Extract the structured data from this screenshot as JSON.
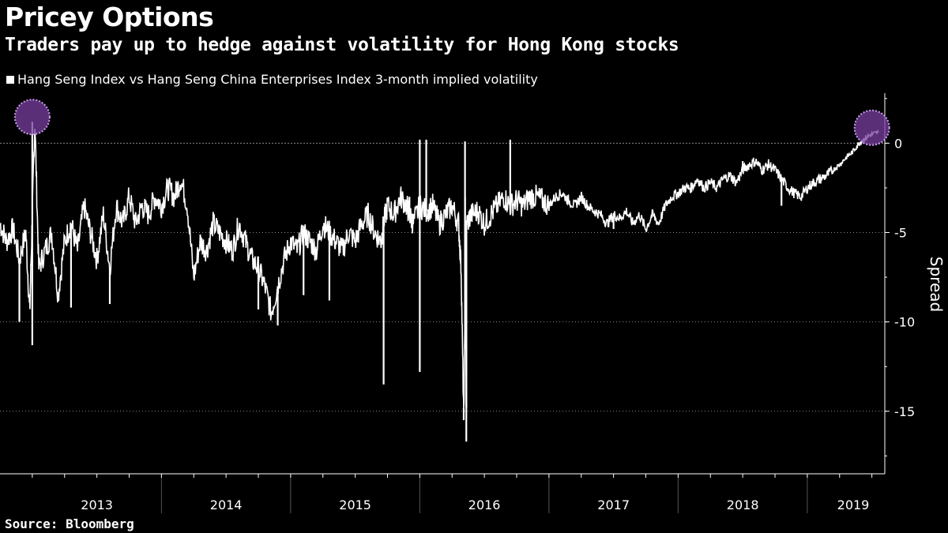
{
  "title": "Pricey Options",
  "subtitle": "Traders pay up to hedge against volatility for Hong Kong stocks",
  "source": "Source: Bloomberg",
  "colors": {
    "background": "#000000",
    "line": "#ffffff",
    "highlight": "#7a3fa0",
    "highlight_border": "#c9a0f0"
  },
  "chart_data": {
    "type": "line",
    "title": "Pricey Options",
    "ylabel": "Spread",
    "xlabel": "",
    "ylim": [
      -18.5,
      2.8
    ],
    "yticks": [
      0,
      -5,
      -10,
      -15
    ],
    "y_tick_labels": [
      "0",
      "-5",
      "-10",
      "-15"
    ],
    "xlim": [
      2012.75,
      2019.6
    ],
    "x_tick_labels": [
      "2013",
      "2014",
      "2015",
      "2016",
      "2017",
      "2018",
      "2019"
    ],
    "reference_line": 0,
    "legend_position": "top-left",
    "series": [
      {
        "name": "Hang Seng Index vs Hang Seng China Enterprises Index 3-month implied volatility",
        "x": [
          2012.75,
          2012.8,
          2012.85,
          2012.9,
          2012.95,
          2012.98,
          2013.0,
          2013.02,
          2013.05,
          2013.1,
          2013.15,
          2013.2,
          2013.25,
          2013.3,
          2013.35,
          2013.4,
          2013.45,
          2013.5,
          2013.55,
          2013.6,
          2013.65,
          2013.7,
          2013.75,
          2013.8,
          2013.85,
          2013.9,
          2013.95,
          2014.0,
          2014.05,
          2014.1,
          2014.15,
          2014.2,
          2014.25,
          2014.3,
          2014.35,
          2014.4,
          2014.45,
          2014.5,
          2014.55,
          2014.6,
          2014.65,
          2014.7,
          2014.75,
          2014.8,
          2014.85,
          2014.9,
          2014.95,
          2015.0,
          2015.05,
          2015.1,
          2015.15,
          2015.2,
          2015.25,
          2015.3,
          2015.35,
          2015.4,
          2015.45,
          2015.5,
          2015.55,
          2015.6,
          2015.65,
          2015.7,
          2015.72,
          2015.75,
          2015.8,
          2015.85,
          2015.9,
          2015.92,
          2015.95,
          2016.0,
          2016.05,
          2016.1,
          2016.15,
          2016.2,
          2016.25,
          2016.3,
          2016.32,
          2016.34,
          2016.36,
          2016.4,
          2016.45,
          2016.5,
          2016.55,
          2016.6,
          2016.65,
          2016.7,
          2016.75,
          2016.8,
          2016.85,
          2016.9,
          2016.95,
          2017.0,
          2017.05,
          2017.1,
          2017.15,
          2017.2,
          2017.25,
          2017.3,
          2017.35,
          2017.4,
          2017.45,
          2017.5,
          2017.55,
          2017.6,
          2017.65,
          2017.7,
          2017.75,
          2017.8,
          2017.85,
          2017.9,
          2017.95,
          2018.0,
          2018.05,
          2018.1,
          2018.15,
          2018.2,
          2018.25,
          2018.3,
          2018.35,
          2018.4,
          2018.45,
          2018.5,
          2018.55,
          2018.6,
          2018.65,
          2018.7,
          2018.75,
          2018.8,
          2018.85,
          2018.9,
          2018.95,
          2019.0,
          2019.05,
          2019.1,
          2019.15,
          2019.2,
          2019.25,
          2019.3,
          2019.35,
          2019.4,
          2019.45,
          2019.5,
          2019.55
        ],
        "values": [
          -4.5,
          -5.5,
          -4.8,
          -6.5,
          -5.0,
          -9.5,
          -4.0,
          1.2,
          -7.0,
          -6.0,
          -5.0,
          -8.5,
          -5.5,
          -4.5,
          -6.0,
          -3.5,
          -5.0,
          -6.5,
          -4.0,
          -7.0,
          -3.5,
          -4.5,
          -3.0,
          -4.5,
          -3.5,
          -4.0,
          -3.0,
          -3.5,
          -2.5,
          -3.0,
          -2.0,
          -3.5,
          -7.5,
          -5.5,
          -6.0,
          -4.5,
          -5.0,
          -5.5,
          -6.0,
          -4.5,
          -5.5,
          -6.5,
          -7.0,
          -8.0,
          -9.5,
          -8.0,
          -6.5,
          -5.5,
          -6.0,
          -5.0,
          -5.5,
          -6.0,
          -4.5,
          -5.0,
          -5.5,
          -6.0,
          -5.0,
          -5.5,
          -4.5,
          -4.0,
          -5.0,
          -5.5,
          -4.5,
          -3.5,
          -4.0,
          -3.0,
          -3.5,
          -4.0,
          -4.5,
          -3.5,
          -3.8,
          -3.5,
          -4.5,
          -4.0,
          -3.5,
          -4.5,
          -7.0,
          -15.5,
          -4.5,
          -4.0,
          -3.8,
          -4.5,
          -4.0,
          -3.5,
          -3.0,
          -3.5,
          -3.2,
          -3.5,
          -3.0,
          -3.0,
          -3.2,
          -3.5,
          -3.0,
          -2.8,
          -3.2,
          -3.5,
          -3.0,
          -3.5,
          -3.8,
          -4.0,
          -4.5,
          -4.0,
          -4.2,
          -3.8,
          -4.5,
          -4.0,
          -4.8,
          -4.0,
          -4.5,
          -3.5,
          -3.0,
          -2.8,
          -2.5,
          -2.5,
          -2.0,
          -2.5,
          -2.2,
          -2.5,
          -2.0,
          -1.8,
          -2.2,
          -1.5,
          -1.2,
          -1.0,
          -1.5,
          -1.2,
          -1.5,
          -2.0,
          -2.5,
          -2.8,
          -3.0,
          -2.5,
          -2.2,
          -2.0,
          -1.8,
          -1.5,
          -1.2,
          -0.8,
          -0.5,
          0.0,
          0.3,
          0.5,
          0.6
        ]
      }
    ],
    "spikes": [
      {
        "x": 2013.0,
        "y": 1.2
      },
      {
        "x": 2013.0,
        "y": -11.3
      },
      {
        "x": 2012.9,
        "y": -10.0
      },
      {
        "x": 2013.3,
        "y": -9.2
      },
      {
        "x": 2013.6,
        "y": -9.0
      },
      {
        "x": 2014.75,
        "y": -9.3
      },
      {
        "x": 2014.9,
        "y": -10.2
      },
      {
        "x": 2015.1,
        "y": -8.5
      },
      {
        "x": 2015.3,
        "y": -8.8
      },
      {
        "x": 2015.72,
        "y": -13.5
      },
      {
        "x": 2015.92,
        "y": -3.0
      },
      {
        "x": 2016.0,
        "y": -12.8
      },
      {
        "x": 2016.0,
        "y": 0.2
      },
      {
        "x": 2016.05,
        "y": 0.2
      },
      {
        "x": 2016.34,
        "y": -14.8
      },
      {
        "x": 2016.36,
        "y": -16.7
      },
      {
        "x": 2016.35,
        "y": -3.0
      },
      {
        "x": 2016.35,
        "y": -9.0
      },
      {
        "x": 2016.36,
        "y": -13.0
      },
      {
        "x": 2016.35,
        "y": -11.5
      },
      {
        "x": 2016.35,
        "y": 0.1
      },
      {
        "x": 2016.36,
        "y": -14.8
      },
      {
        "x": 2016.7,
        "y": 0.2
      },
      {
        "x": 2017.5,
        "y": -4.8
      },
      {
        "x": 2018.5,
        "y": -1.0
      },
      {
        "x": 2018.8,
        "y": -3.5
      }
    ],
    "highlights": [
      {
        "x": 2013.0,
        "y": 1.2
      },
      {
        "x": 2019.5,
        "y": 0.6
      }
    ]
  }
}
